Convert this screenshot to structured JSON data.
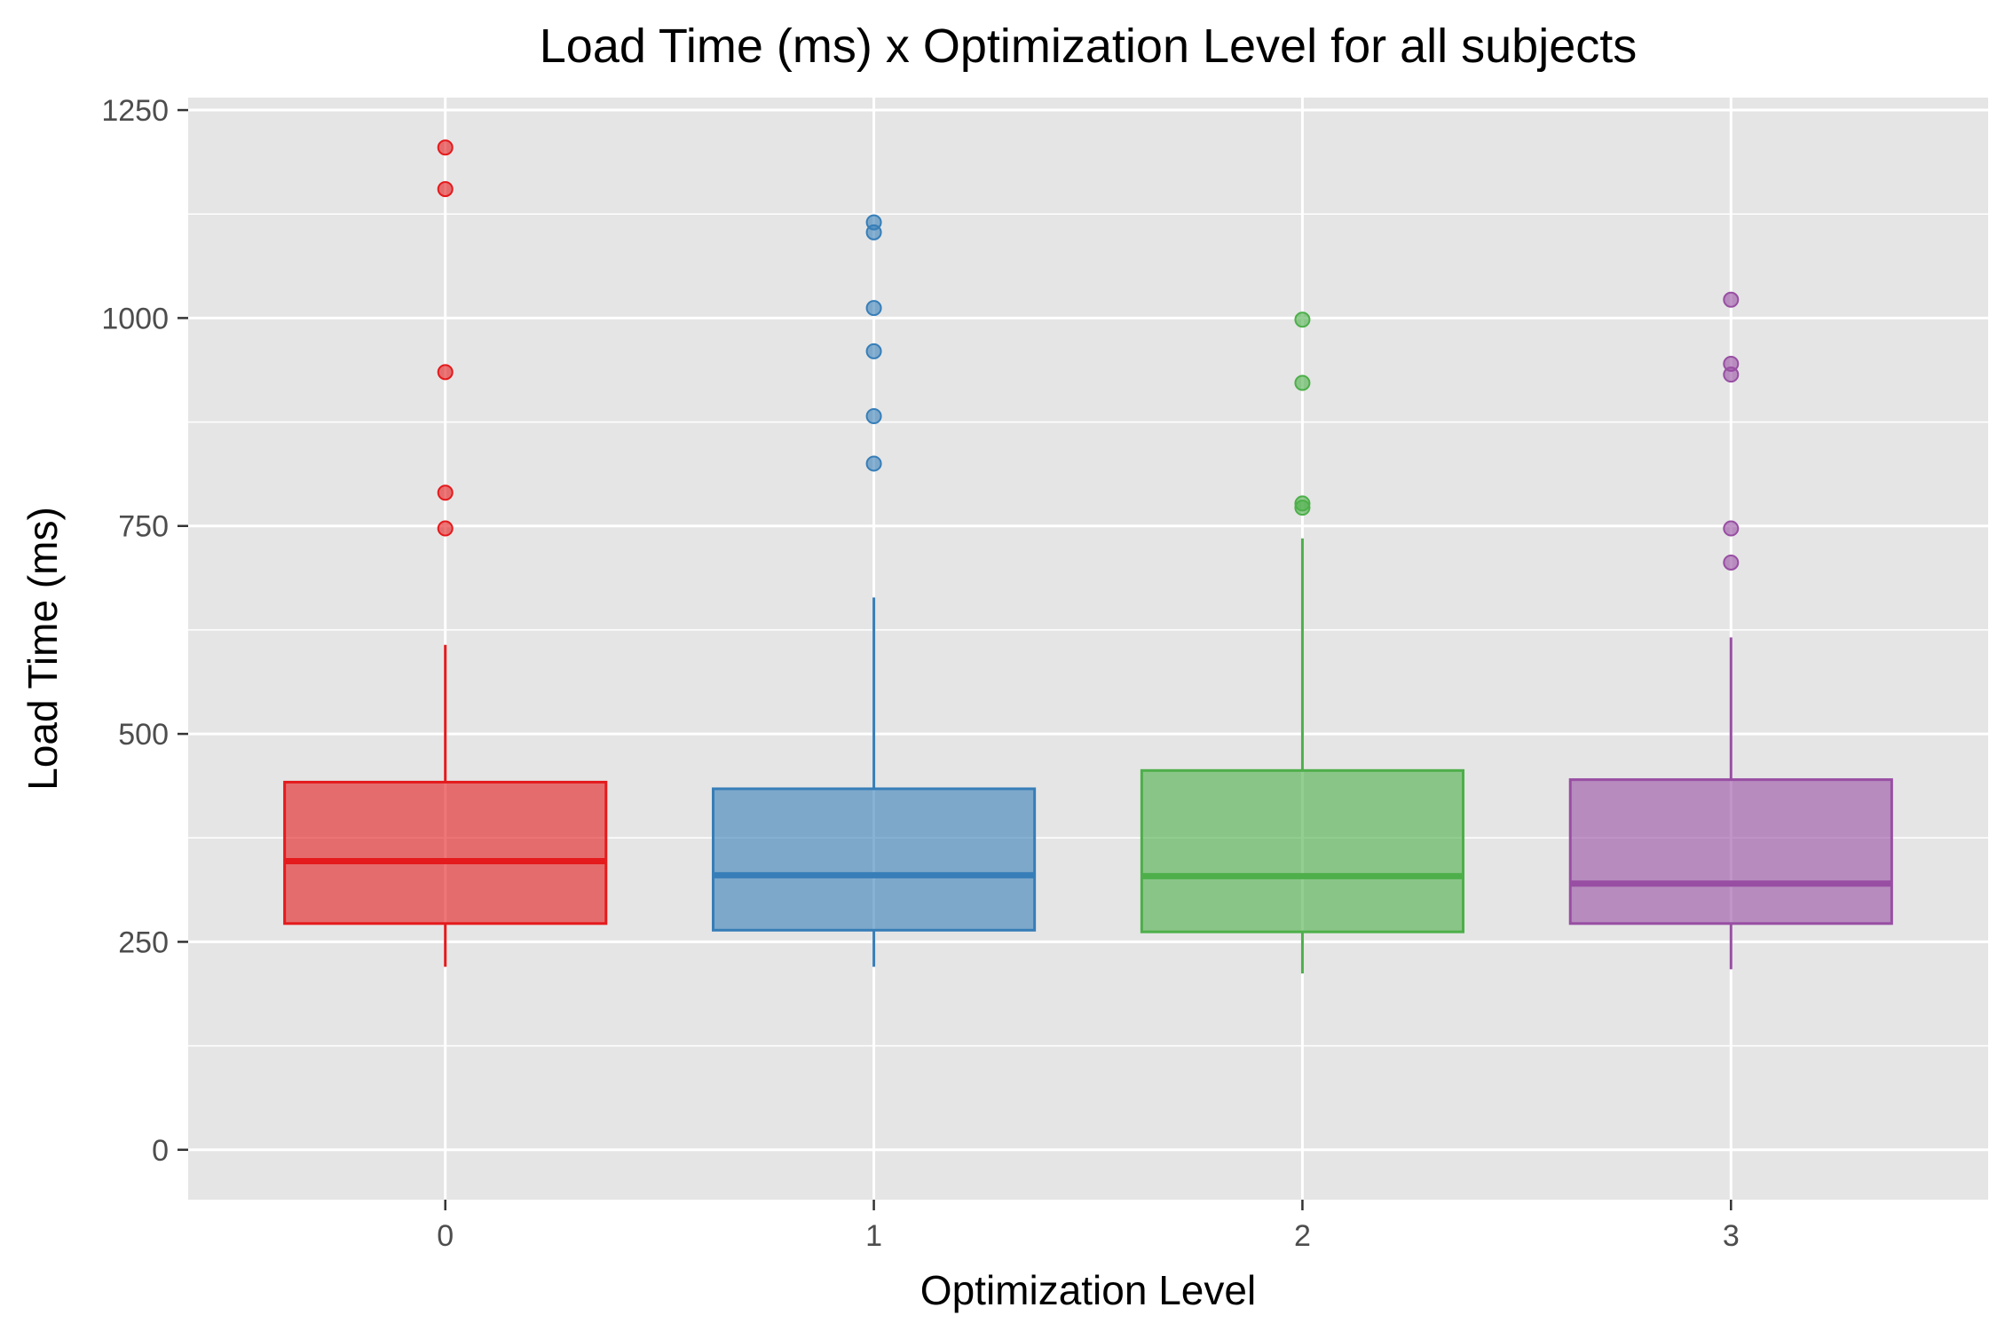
{
  "chart_data": {
    "type": "box",
    "title": "Load Time (ms) x Optimization Level for all subjects",
    "xlabel": "Optimization Level",
    "ylabel": "Load Time (ms)",
    "ylim": [
      -60,
      1265
    ],
    "y_ticks": [
      0,
      250,
      500,
      750,
      1000,
      1250
    ],
    "y_minor_ticks": [
      125,
      375,
      625,
      875,
      1125
    ],
    "categories": [
      "0",
      "1",
      "2",
      "3"
    ],
    "grid": true,
    "legend": "none",
    "series": [
      {
        "category": "0",
        "color": "#E41A1C",
        "whisker_low": 220,
        "q1": 272,
        "median": 347,
        "q3": 442,
        "whisker_high": 607,
        "outliers": [
          747,
          790,
          935,
          1155,
          1205
        ]
      },
      {
        "category": "1",
        "color": "#377EB8",
        "whisker_low": 220,
        "q1": 264,
        "median": 330,
        "q3": 434,
        "whisker_high": 664,
        "outliers": [
          825,
          882,
          960,
          1012,
          1103,
          1115
        ]
      },
      {
        "category": "2",
        "color": "#4DAF4A",
        "whisker_low": 212,
        "q1": 262,
        "median": 329,
        "q3": 456,
        "whisker_high": 735,
        "outliers": [
          772,
          777,
          922,
          998
        ]
      },
      {
        "category": "3",
        "color": "#984EA3",
        "whisker_low": 217,
        "q1": 272,
        "median": 320,
        "q3": 445,
        "whisker_high": 616,
        "outliers": [
          706,
          747,
          932,
          945,
          1022
        ]
      }
    ]
  }
}
